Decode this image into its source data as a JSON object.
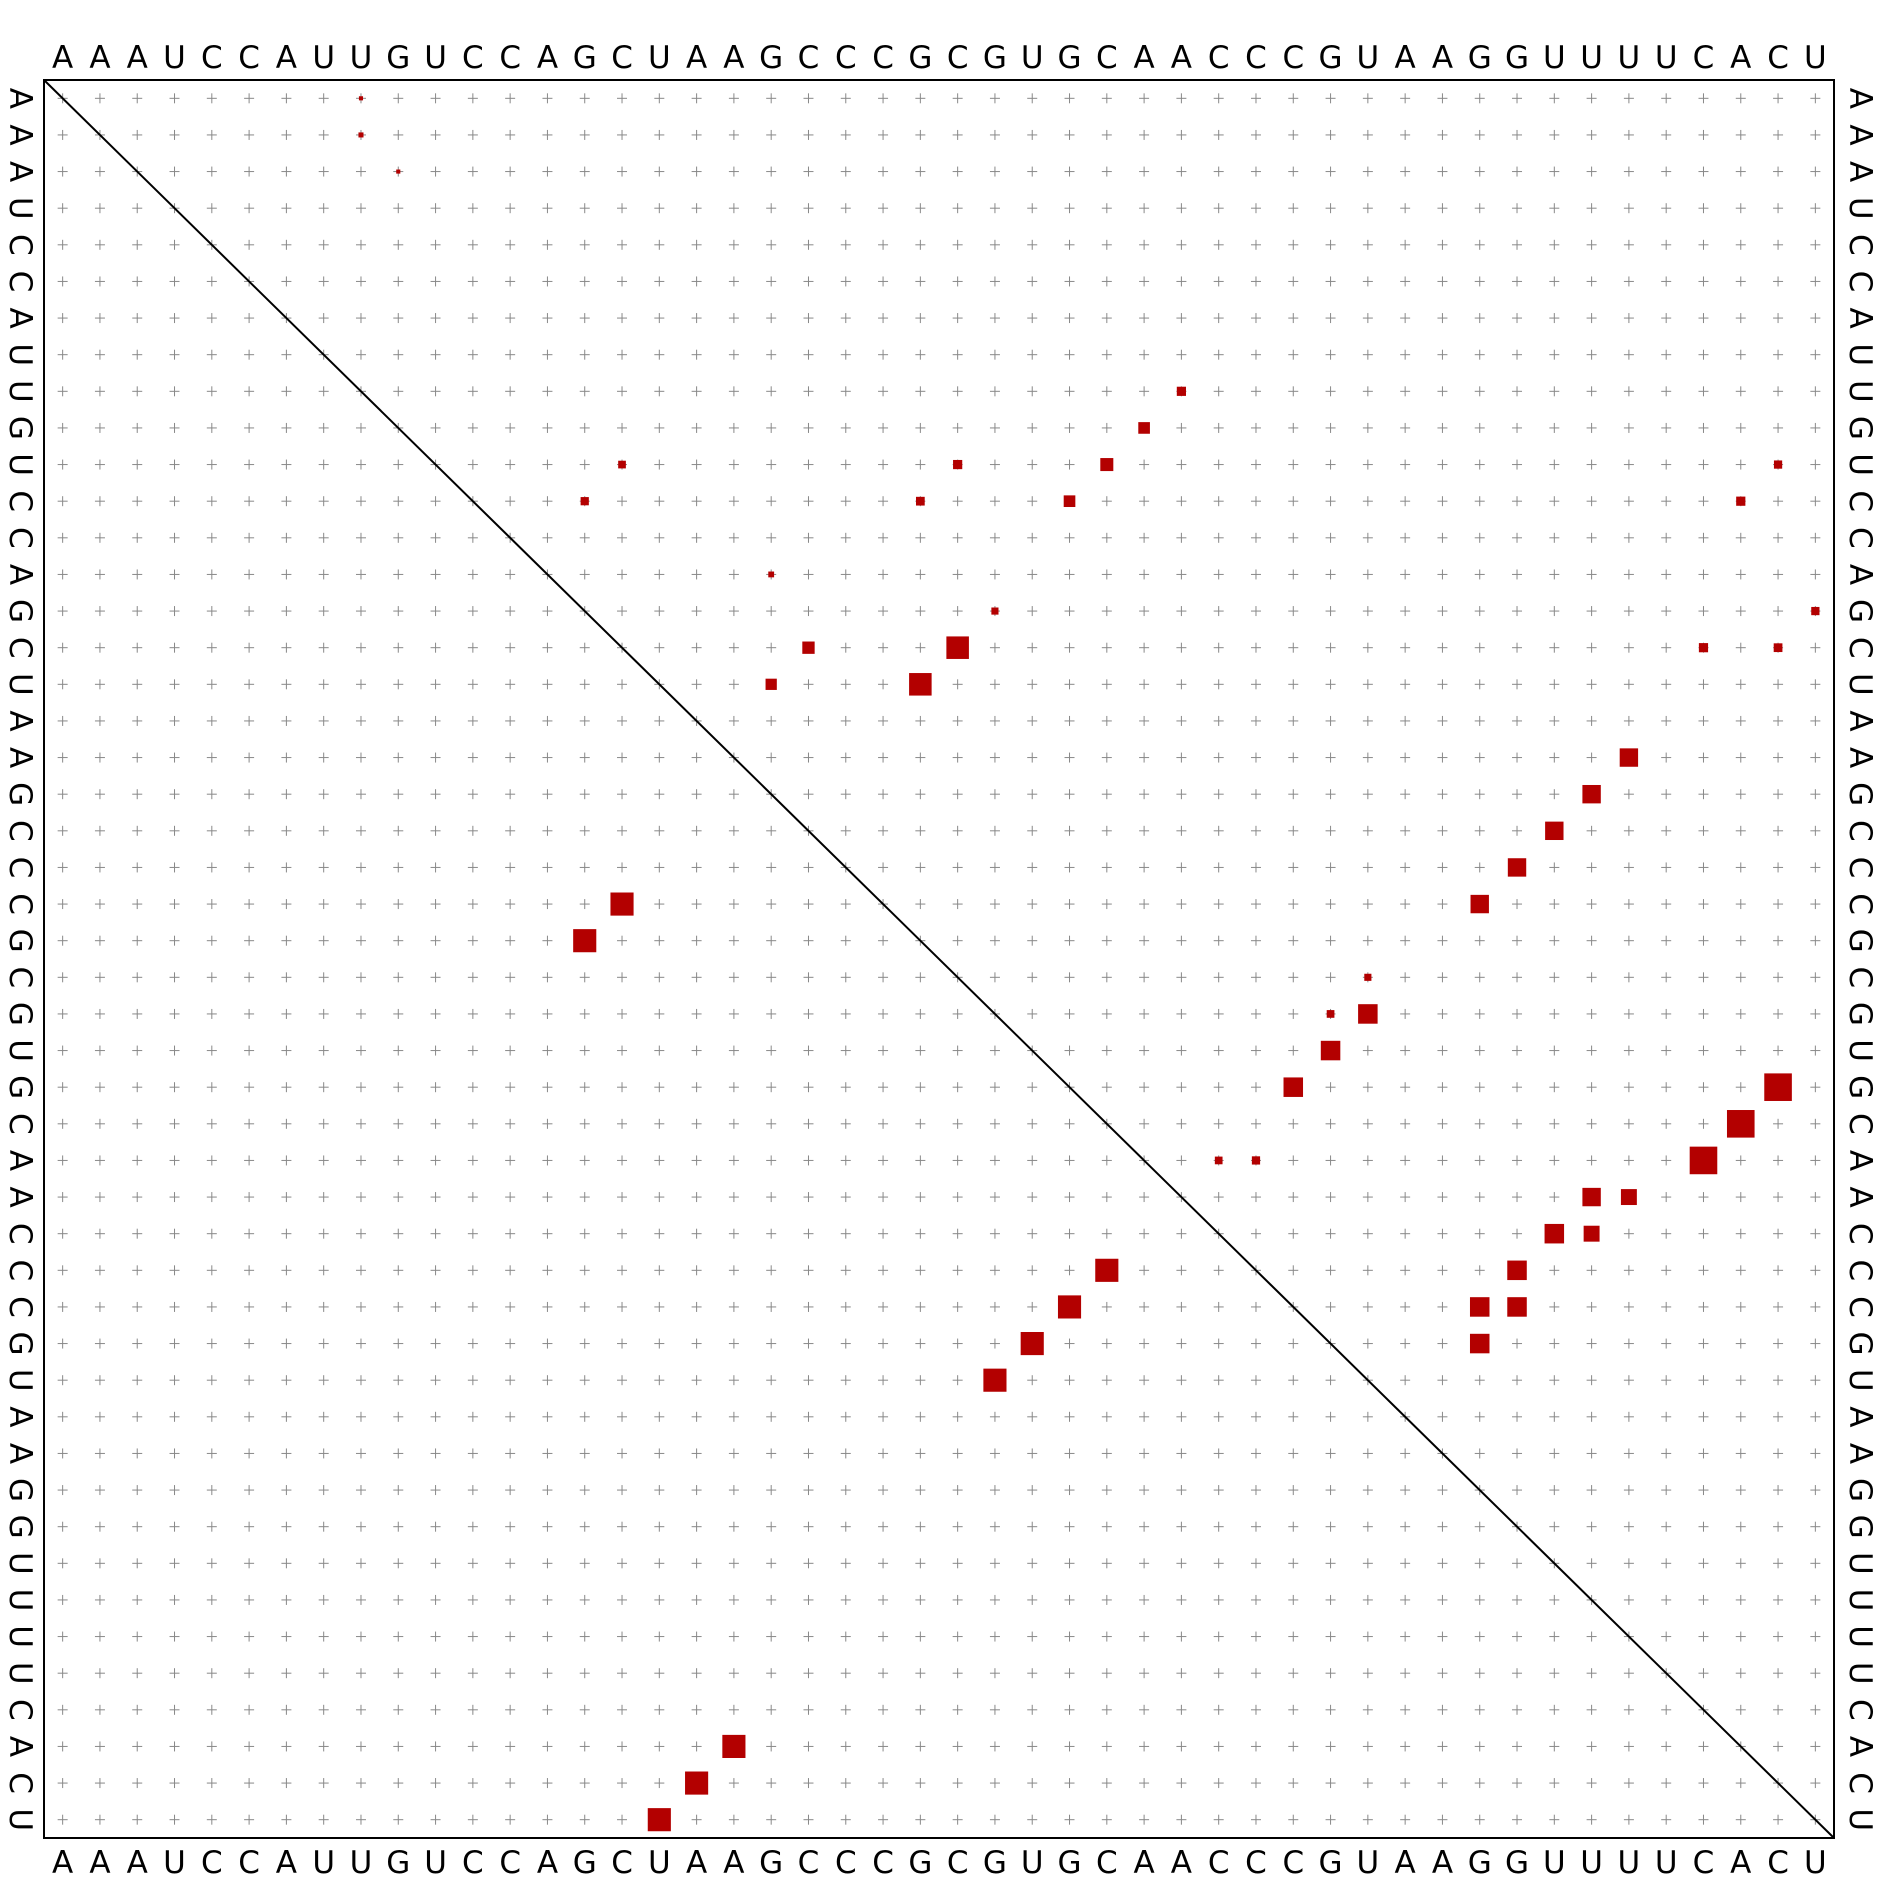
{
  "sequence": "AAAUCCAUUGUCCAGCUAAGCCCGCGUGCAACCCGUAAGGUUUUCACU",
  "colors": {
    "pair": "#b30000",
    "grid": "#888888",
    "text": "#000000",
    "diagonal": "#000000"
  },
  "chart_data": {
    "type": "heatmap",
    "description_kind": "RNA base-pair probability dot plot",
    "upper_triangle": "base-pair probabilities (square area ~ probability)",
    "lower_triangle": "minimum free energy structure pairs",
    "upper_pairs": [
      {
        "i": 1,
        "j": 9,
        "p": 0.02
      },
      {
        "i": 2,
        "j": 9,
        "p": 0.03
      },
      {
        "i": 3,
        "j": 10,
        "p": 0.02
      },
      {
        "i": 9,
        "j": 31,
        "p": 0.1
      },
      {
        "i": 10,
        "j": 30,
        "p": 0.16
      },
      {
        "i": 11,
        "j": 29,
        "p": 0.2
      },
      {
        "i": 11,
        "j": 25,
        "p": 0.1
      },
      {
        "i": 11,
        "j": 16,
        "p": 0.07
      },
      {
        "i": 12,
        "j": 28,
        "p": 0.16
      },
      {
        "i": 12,
        "j": 24,
        "p": 0.09
      },
      {
        "i": 12,
        "j": 15,
        "p": 0.08
      },
      {
        "i": 12,
        "j": 46,
        "p": 0.1
      },
      {
        "i": 11,
        "j": 47,
        "p": 0.08
      },
      {
        "i": 15,
        "j": 26,
        "p": 0.06
      },
      {
        "i": 14,
        "j": 20,
        "p": 0.04
      },
      {
        "i": 15,
        "j": 48,
        "p": 0.08
      },
      {
        "i": 16,
        "j": 21,
        "p": 0.18
      },
      {
        "i": 16,
        "j": 25,
        "p": 0.6
      },
      {
        "i": 16,
        "j": 45,
        "p": 0.1
      },
      {
        "i": 16,
        "j": 47,
        "p": 0.09
      },
      {
        "i": 17,
        "j": 20,
        "p": 0.15
      },
      {
        "i": 17,
        "j": 24,
        "p": 0.6
      },
      {
        "i": 19,
        "j": 43,
        "p": 0.4
      },
      {
        "i": 20,
        "j": 42,
        "p": 0.4
      },
      {
        "i": 21,
        "j": 41,
        "p": 0.4
      },
      {
        "i": 22,
        "j": 40,
        "p": 0.4
      },
      {
        "i": 23,
        "j": 39,
        "p": 0.4
      },
      {
        "i": 25,
        "j": 36,
        "p": 0.06
      },
      {
        "i": 26,
        "j": 35,
        "p": 0.07
      },
      {
        "i": 26,
        "j": 36,
        "p": 0.45
      },
      {
        "i": 27,
        "j": 35,
        "p": 0.45
      },
      {
        "i": 28,
        "j": 34,
        "p": 0.45
      },
      {
        "i": 28,
        "j": 47,
        "p": 0.9
      },
      {
        "i": 29,
        "j": 46,
        "p": 0.9
      },
      {
        "i": 30,
        "j": 45,
        "p": 0.9
      },
      {
        "i": 30,
        "j": 32,
        "p": 0.07
      },
      {
        "i": 30,
        "j": 33,
        "p": 0.08
      },
      {
        "i": 31,
        "j": 42,
        "p": 0.4
      },
      {
        "i": 31,
        "j": 43,
        "p": 0.3
      },
      {
        "i": 32,
        "j": 41,
        "p": 0.45
      },
      {
        "i": 32,
        "j": 42,
        "p": 0.3
      },
      {
        "i": 33,
        "j": 40,
        "p": 0.45
      },
      {
        "i": 34,
        "j": 39,
        "p": 0.45
      },
      {
        "i": 34,
        "j": 40,
        "p": 0.45
      },
      {
        "i": 35,
        "j": 39,
        "p": 0.45
      }
    ],
    "mfe_pairs": [
      {
        "i": 15,
        "j": 24
      },
      {
        "i": 16,
        "j": 23
      },
      {
        "i": 26,
        "j": 36
      },
      {
        "i": 27,
        "j": 35
      },
      {
        "i": 28,
        "j": 34
      },
      {
        "i": 29,
        "j": 33
      },
      {
        "i": 17,
        "j": 48
      },
      {
        "i": 18,
        "j": 47
      },
      {
        "i": 19,
        "j": 46
      }
    ]
  }
}
